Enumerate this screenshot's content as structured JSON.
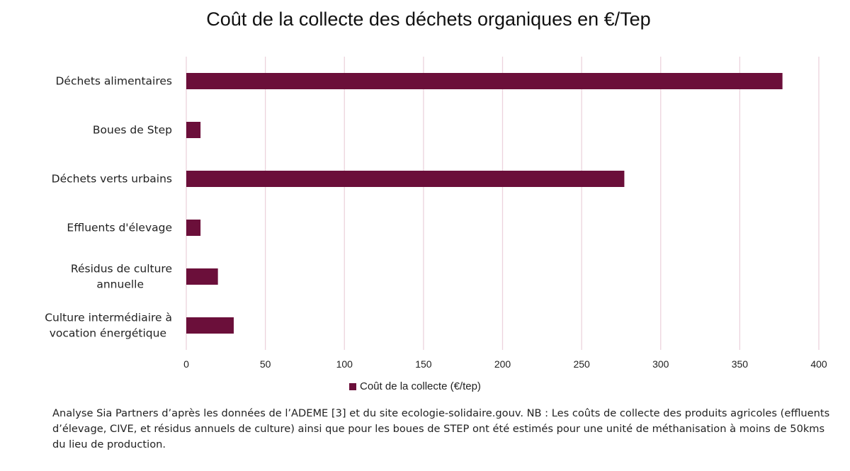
{
  "chart_data": {
    "type": "bar",
    "orientation": "horizontal",
    "title": "Coût de la collecte des déchets organiques en €/Tep",
    "categories": [
      "Déchets alimentaires",
      "Boues de Step",
      "Déchets verts urbains",
      "Effluents d'élevage",
      "Résidus de culture annuelle",
      "Culture intermédiaire à vocation énergétique"
    ],
    "category_lines": [
      [
        "Déchets alimentaires"
      ],
      [
        "Boues de Step"
      ],
      [
        "Déchets verts urbains"
      ],
      [
        "Effluents d'élevage"
      ],
      [
        "Résidus de culture",
        "annuelle"
      ],
      [
        "Culture intermédiaire à",
        "vocation énergétique"
      ]
    ],
    "series": [
      {
        "name": "Coût de la collecte (€/tep)",
        "values": [
          377,
          9,
          277,
          9,
          20,
          30
        ]
      }
    ],
    "xlim": [
      0,
      400
    ],
    "xticks": [
      "0",
      "50",
      "100",
      "150",
      "200",
      "250",
      "300",
      "350",
      "400"
    ],
    "grid": true,
    "legend_position": "bottom",
    "colors": {
      "bar": "#6b0f3a",
      "grid": "#ecd3dc"
    }
  },
  "footnote": "Analyse Sia Partners d’après les données de l’ADEME [3] et du site ecologie-solidaire.gouv. NB : Les coûts de collecte des produits agricoles (effluents d’élevage, CIVE, et résidus annuels de culture) ainsi que pour les boues de STEP ont été estimés pour une unité de méthanisation à moins de 50kms du lieu de production."
}
